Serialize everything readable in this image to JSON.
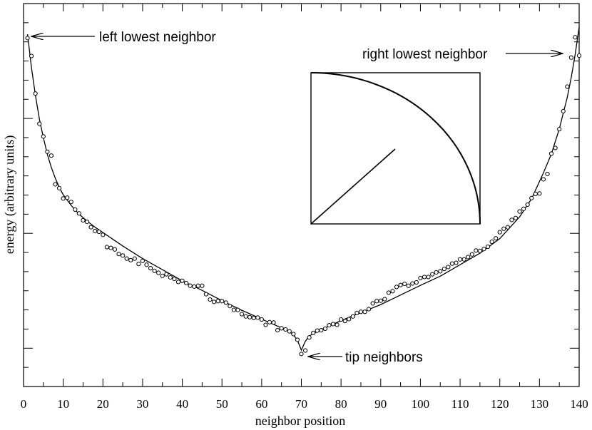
{
  "chart_data": {
    "type": "scatter",
    "xlabel": "neighbor position",
    "ylabel": "energy  (arbitrary units)",
    "xlim": [
      0,
      140
    ],
    "ylim": [
      0,
      100
    ],
    "x_ticks": [
      0,
      10,
      20,
      30,
      40,
      50,
      60,
      70,
      80,
      90,
      100,
      110,
      120,
      130,
      140
    ],
    "y_tick_values": [
      5,
      10,
      15,
      20,
      25,
      30,
      35,
      40,
      45,
      50,
      55,
      60,
      65,
      70,
      75,
      80,
      85,
      90,
      95
    ],
    "y_major_ticks": [
      10,
      40,
      70
    ],
    "y_tick_labels_shown": false,
    "grid": false,
    "series": [
      {
        "marker": "circle",
        "x": [
          1,
          2,
          3,
          4,
          5,
          6,
          7,
          8,
          9,
          10,
          11,
          12,
          13,
          14,
          15,
          16,
          17,
          18,
          19,
          20,
          21,
          22,
          23,
          24,
          25,
          26,
          27,
          28,
          29,
          30,
          31,
          32,
          33,
          34,
          35,
          36,
          37,
          38,
          39,
          40,
          41,
          42,
          43,
          44,
          45,
          46,
          47,
          48,
          49,
          50,
          51,
          52,
          53,
          54,
          55,
          56,
          57,
          58,
          59,
          60,
          61,
          62,
          63,
          64,
          65,
          66,
          67,
          68,
          69,
          70,
          71,
          72,
          73,
          74,
          75,
          76,
          77,
          78,
          79,
          80,
          81,
          82,
          83,
          84,
          85,
          86,
          87,
          88,
          89,
          90,
          91,
          92,
          93,
          94,
          95,
          96,
          97,
          98,
          99,
          100,
          101,
          102,
          103,
          104,
          105,
          106,
          107,
          108,
          109,
          110,
          111,
          112,
          113,
          114,
          115,
          116,
          117,
          118,
          119,
          120,
          121,
          122,
          123,
          124,
          125,
          126,
          127,
          128,
          129,
          130,
          131,
          132,
          133,
          134,
          135,
          136,
          137,
          138,
          139,
          140
        ],
        "y": [
          91.0,
          86.3,
          76.5,
          68.6,
          65.3,
          61.3,
          60.3,
          52.8,
          51.8,
          49.1,
          49.3,
          48.2,
          46.2,
          45.2,
          43.4,
          43.0,
          41.6,
          40.6,
          40.4,
          39.6,
          36.4,
          36.2,
          35.8,
          34.6,
          34.2,
          33.4,
          33.0,
          33.4,
          32.0,
          32.8,
          31.8,
          30.9,
          30.2,
          29.7,
          28.9,
          29.3,
          28.5,
          28.1,
          27.3,
          27.6,
          27.0,
          26.3,
          26.1,
          26.3,
          26.3,
          24.1,
          22.7,
          22.1,
          22.3,
          22.3,
          21.9,
          21.0,
          20.0,
          20.0,
          18.9,
          18.3,
          18.1,
          17.9,
          18.0,
          17.5,
          16.1,
          16.8,
          16.7,
          14.7,
          15.2,
          14.9,
          14.4,
          13.7,
          12.2,
          8.5,
          9.4,
          12.8,
          14.0,
          14.6,
          14.7,
          15.1,
          16.0,
          16.3,
          16.1,
          17.5,
          17.1,
          17.6,
          18.3,
          19.2,
          19.5,
          19.5,
          20.2,
          21.7,
          22.3,
          22.4,
          22.8,
          24.5,
          24.9,
          26.0,
          26.5,
          26.8,
          26.3,
          26.9,
          27.2,
          28.3,
          28.6,
          28.6,
          29.3,
          29.8,
          30.1,
          30.7,
          31.2,
          32.1,
          32.3,
          33.2,
          33.2,
          33.8,
          34.5,
          35.5,
          35.4,
          35.9,
          36.5,
          37.8,
          38.7,
          40.3,
          41.2,
          41.6,
          43.5,
          44.0,
          45.7,
          46.4,
          47.5,
          49.2,
          50.3,
          50.4,
          54.1,
          55.5,
          60.8,
          62.3,
          67.2,
          71.9,
          78.3,
          85.9,
          91.2,
          86.4
        ],
        "fit_x": [
          1,
          2,
          3,
          4,
          5,
          6,
          7,
          8,
          9,
          10,
          12,
          14,
          16,
          18,
          20,
          25,
          30,
          35,
          40,
          45,
          50,
          55,
          60,
          65,
          67,
          68,
          69,
          70,
          71,
          72,
          74,
          76,
          80,
          85,
          90,
          95,
          100,
          105,
          110,
          115,
          120,
          125,
          128,
          131,
          133,
          135,
          136,
          137,
          138,
          139,
          140
        ],
        "fit_y": [
          92.0,
          83.3,
          76.0,
          69.8,
          65.0,
          60.6,
          57.2,
          54.4,
          52.0,
          50.1,
          47.3,
          45.0,
          43.2,
          41.6,
          40.2,
          36.7,
          33.4,
          30.5,
          27.6,
          25.1,
          22.4,
          19.9,
          17.6,
          15.3,
          14.3,
          13.5,
          12.1,
          9.5,
          11.8,
          13.2,
          14.3,
          15.3,
          17.2,
          19.3,
          21.4,
          23.9,
          26.4,
          28.8,
          31.8,
          34.8,
          38.6,
          44.3,
          49.0,
          55.8,
          60.7,
          67.3,
          71.4,
          75.5,
          80.7,
          86.7,
          93.9
        ]
      }
    ],
    "annotations": [
      {
        "text": "left lowest neighbor"
      },
      {
        "text": "right lowest neighbor"
      },
      {
        "text": "tip neighbors"
      }
    ]
  }
}
